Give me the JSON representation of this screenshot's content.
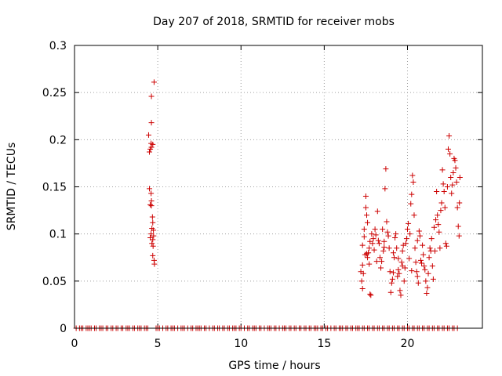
{
  "chart_data": {
    "type": "scatter",
    "title": "Day 207 of 2018, SRMTID for receiver mobs",
    "xlabel": "GPS time / hours",
    "ylabel": "SRMTID / TECUs",
    "xlim": [
      0,
      24.5
    ],
    "ylim": [
      0,
      0.3
    ],
    "xticks": [
      0,
      5,
      10,
      15,
      20
    ],
    "yticks": [
      0,
      0.05,
      0.1,
      0.15,
      0.2,
      0.25,
      0.3
    ],
    "xtick_labels": [
      "0",
      "5",
      "10",
      "15",
      "20"
    ],
    "ytick_labels": [
      "0",
      "0.05",
      "0.1",
      "0.15",
      "0.2",
      "0.25",
      "0.3"
    ],
    "grid": true,
    "marker": "+",
    "color": "#cc0000",
    "series": [
      {
        "name": "SRMTID",
        "points": [
          [
            4.45,
            0.205
          ],
          [
            4.5,
            0.187
          ],
          [
            4.55,
            0.19
          ],
          [
            4.6,
            0.196
          ],
          [
            4.62,
            0.192
          ],
          [
            4.7,
            0.195
          ],
          [
            4.78,
            0.261
          ],
          [
            4.62,
            0.246
          ],
          [
            4.62,
            0.218
          ],
          [
            4.5,
            0.148
          ],
          [
            4.6,
            0.143
          ],
          [
            4.55,
            0.131
          ],
          [
            4.62,
            0.13
          ],
          [
            4.68,
            0.118
          ],
          [
            4.7,
            0.112
          ],
          [
            4.65,
            0.106
          ],
          [
            4.6,
            0.1
          ],
          [
            4.55,
            0.096
          ],
          [
            4.7,
            0.094
          ],
          [
            4.75,
            0.098
          ],
          [
            4.65,
            0.09
          ],
          [
            4.72,
            0.087
          ],
          [
            4.7,
            0.077
          ],
          [
            4.78,
            0.072
          ],
          [
            4.8,
            0.068
          ],
          [
            4.62,
            0.135
          ],
          [
            4.74,
            0.104
          ],
          [
            17.2,
            0.06
          ],
          [
            17.25,
            0.05
          ],
          [
            17.3,
            0.042
          ],
          [
            17.35,
            0.058
          ],
          [
            17.3,
            0.088
          ],
          [
            17.4,
            0.097
          ],
          [
            17.4,
            0.105
          ],
          [
            17.45,
            0.078
          ],
          [
            17.5,
            0.128
          ],
          [
            17.5,
            0.14
          ],
          [
            17.55,
            0.12
          ],
          [
            17.6,
            0.112
          ],
          [
            17.6,
            0.075
          ],
          [
            17.65,
            0.08
          ],
          [
            17.7,
            0.085
          ],
          [
            17.7,
            0.068
          ],
          [
            17.75,
            0.036
          ],
          [
            17.8,
            0.035
          ],
          [
            17.85,
            0.1
          ],
          [
            17.9,
            0.09
          ],
          [
            17.95,
            0.095
          ],
          [
            18.0,
            0.083
          ],
          [
            18.05,
            0.105
          ],
          [
            18.1,
            0.099
          ],
          [
            18.2,
            0.124
          ],
          [
            18.25,
            0.093
          ],
          [
            18.3,
            0.09
          ],
          [
            18.35,
            0.075
          ],
          [
            18.4,
            0.064
          ],
          [
            18.45,
            0.071
          ],
          [
            18.5,
            0.105
          ],
          [
            18.55,
            0.082
          ],
          [
            18.6,
            0.086
          ],
          [
            18.65,
            0.148
          ],
          [
            18.7,
            0.169
          ],
          [
            18.75,
            0.113
          ],
          [
            18.8,
            0.102
          ],
          [
            18.85,
            0.098
          ],
          [
            18.9,
            0.085
          ],
          [
            18.95,
            0.06
          ],
          [
            19.0,
            0.038
          ],
          [
            19.05,
            0.048
          ],
          [
            19.1,
            0.052
          ],
          [
            19.15,
            0.08
          ],
          [
            19.2,
            0.075
          ],
          [
            19.25,
            0.096
          ],
          [
            19.3,
            0.1
          ],
          [
            19.35,
            0.085
          ],
          [
            19.4,
            0.055
          ],
          [
            19.45,
            0.062
          ],
          [
            19.5,
            0.058
          ],
          [
            19.55,
            0.04
          ],
          [
            19.6,
            0.035
          ],
          [
            19.65,
            0.07
          ],
          [
            19.7,
            0.082
          ],
          [
            19.75,
            0.088
          ],
          [
            19.8,
            0.05
          ],
          [
            19.85,
            0.064
          ],
          [
            19.9,
            0.09
          ],
          [
            19.95,
            0.095
          ],
          [
            20.0,
            0.105
          ],
          [
            20.05,
            0.111
          ],
          [
            20.1,
            0.074
          ],
          [
            20.15,
            0.1
          ],
          [
            20.2,
            0.132
          ],
          [
            20.25,
            0.142
          ],
          [
            20.3,
            0.162
          ],
          [
            20.35,
            0.155
          ],
          [
            20.4,
            0.12
          ],
          [
            20.45,
            0.085
          ],
          [
            20.5,
            0.07
          ],
          [
            20.55,
            0.06
          ],
          [
            20.6,
            0.055
          ],
          [
            20.65,
            0.048
          ],
          [
            20.7,
            0.103
          ],
          [
            20.75,
            0.098
          ],
          [
            20.8,
            0.072
          ],
          [
            20.85,
            0.069
          ],
          [
            20.9,
            0.088
          ],
          [
            20.95,
            0.078
          ],
          [
            21.0,
            0.066
          ],
          [
            21.05,
            0.062
          ],
          [
            21.1,
            0.05
          ],
          [
            21.15,
            0.037
          ],
          [
            21.2,
            0.043
          ],
          [
            21.3,
            0.075
          ],
          [
            21.35,
            0.085
          ],
          [
            21.4,
            0.082
          ],
          [
            21.45,
            0.095
          ],
          [
            21.5,
            0.066
          ],
          [
            21.55,
            0.052
          ],
          [
            21.6,
            0.107
          ],
          [
            21.7,
            0.115
          ],
          [
            21.75,
            0.145
          ],
          [
            21.8,
            0.12
          ],
          [
            21.85,
            0.11
          ],
          [
            21.9,
            0.102
          ],
          [
            21.95,
            0.085
          ],
          [
            22.0,
            0.125
          ],
          [
            22.05,
            0.133
          ],
          [
            22.1,
            0.168
          ],
          [
            22.15,
            0.153
          ],
          [
            22.2,
            0.145
          ],
          [
            22.25,
            0.128
          ],
          [
            22.3,
            0.09
          ],
          [
            22.35,
            0.087
          ],
          [
            22.4,
            0.15
          ],
          [
            22.45,
            0.19
          ],
          [
            22.5,
            0.204
          ],
          [
            22.55,
            0.185
          ],
          [
            22.6,
            0.16
          ],
          [
            22.65,
            0.143
          ],
          [
            22.7,
            0.152
          ],
          [
            22.75,
            0.165
          ],
          [
            22.8,
            0.18
          ],
          [
            22.85,
            0.178
          ],
          [
            22.9,
            0.17
          ],
          [
            22.95,
            0.155
          ],
          [
            23.0,
            0.128
          ],
          [
            23.05,
            0.108
          ],
          [
            23.1,
            0.098
          ],
          [
            23.12,
            0.133
          ],
          [
            23.15,
            0.16
          ],
          [
            17.3,
            0.067
          ],
          [
            17.55,
            0.079
          ],
          [
            17.75,
            0.092
          ],
          [
            18.15,
            0.071
          ],
          [
            18.6,
            0.092
          ],
          [
            19.15,
            0.059
          ],
          [
            19.45,
            0.074
          ],
          [
            19.7,
            0.066
          ],
          [
            20.25,
            0.061
          ],
          [
            20.6,
            0.093
          ],
          [
            21.25,
            0.058
          ],
          [
            21.65,
            0.082
          ]
        ]
      }
    ],
    "zero_points_x": [
      0.1,
      0.3,
      0.4,
      0.5,
      0.7,
      0.8,
      0.9,
      1.0,
      1.2,
      1.3,
      1.5,
      1.6,
      1.7,
      1.9,
      2.0,
      2.2,
      2.3,
      2.5,
      2.6,
      2.8,
      2.9,
      3.1,
      3.2,
      3.3,
      3.5,
      3.6,
      3.8,
      3.9,
      4.0,
      4.2,
      4.3,
      4.4,
      4.9,
      5.0,
      5.1,
      5.3,
      5.5,
      5.6,
      5.8,
      5.9,
      6.0,
      6.2,
      6.4,
      6.5,
      6.6,
      6.8,
      7.0,
      7.1,
      7.3,
      7.4,
      7.5,
      7.6,
      7.8,
      7.9,
      8.1,
      8.3,
      8.4,
      8.6,
      8.7,
      8.9,
      9.0,
      9.2,
      9.3,
      9.5,
      9.6,
      9.7,
      9.9,
      10.0,
      10.2,
      10.4,
      10.5,
      10.7,
      10.8,
      10.9,
      11.1,
      11.2,
      11.4,
      11.6,
      11.7,
      11.8,
      12.0,
      12.1,
      12.3,
      12.5,
      12.6,
      12.7,
      12.9,
      13.0,
      13.2,
      13.3,
      13.5,
      13.6,
      13.8,
      13.9,
      14.1,
      14.2,
      14.4,
      14.5,
      14.6,
      14.8,
      14.9,
      15.1,
      15.2,
      15.4,
      15.6,
      15.7,
      15.9,
      16.0,
      16.1,
      16.3,
      16.4,
      16.6,
      16.7,
      16.9,
      17.0,
      17.1,
      17.3,
      17.4,
      17.6,
      17.7,
      17.9,
      18.0,
      18.2,
      18.3,
      18.5,
      18.6,
      18.8,
      18.9,
      19.1,
      19.2,
      19.4,
      19.5,
      19.7,
      19.8,
      20.0,
      20.1,
      20.3,
      20.4,
      20.6,
      20.7,
      20.9,
      21.0,
      21.2,
      21.3,
      21.5,
      21.6,
      21.8,
      21.9,
      22.1,
      22.2,
      22.4,
      22.5,
      22.7,
      22.8,
      23.0
    ]
  }
}
